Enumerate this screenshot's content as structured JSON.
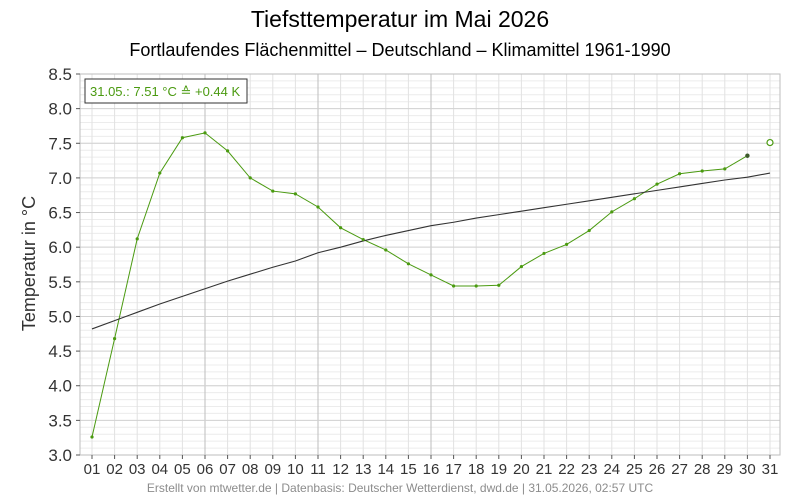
{
  "chart_data": {
    "type": "line",
    "title": "Tiefsttemperatur im Mai 2026",
    "subtitle": "Fortlaufendes Flächenmittel – Deutschland – Klimamittel 1961-1990",
    "xlabel": "",
    "ylabel": "Temperatur in °C",
    "x": [
      "01",
      "02",
      "03",
      "04",
      "05",
      "06",
      "07",
      "08",
      "09",
      "10",
      "11",
      "12",
      "13",
      "14",
      "15",
      "16",
      "17",
      "18",
      "19",
      "20",
      "21",
      "22",
      "23",
      "24",
      "25",
      "26",
      "27",
      "28",
      "29",
      "30",
      "31"
    ],
    "ylim": [
      3.0,
      8.5
    ],
    "yticks": [
      "3.0",
      "3.5",
      "4.0",
      "4.5",
      "5.0",
      "5.5",
      "6.0",
      "6.5",
      "7.0",
      "7.5",
      "8.0",
      "8.5"
    ],
    "grid": true,
    "series": [
      {
        "name": "",
        "color": "#4a9a10",
        "values": [
          3.26,
          4.68,
          6.12,
          7.07,
          7.58,
          7.65,
          7.39,
          7.0,
          6.81,
          6.77,
          6.58,
          6.28,
          6.11,
          5.96,
          5.76,
          5.6,
          5.44,
          5.44,
          5.45,
          5.72,
          5.91,
          6.04,
          6.24,
          6.51,
          6.7,
          6.91,
          7.06,
          7.1,
          7.13,
          7.32,
          null
        ]
      },
      {
        "name": "",
        "color": "#333333",
        "values": [
          4.82,
          4.94,
          5.06,
          5.18,
          5.29,
          5.4,
          5.51,
          5.61,
          5.71,
          5.8,
          5.92,
          6.0,
          6.09,
          6.17,
          6.24,
          6.31,
          6.36,
          6.42,
          6.47,
          6.52,
          6.57,
          6.62,
          6.67,
          6.72,
          6.77,
          6.82,
          6.87,
          6.92,
          6.97,
          7.01,
          7.07
        ]
      }
    ],
    "forecast_point": {
      "x": "31",
      "value": 7.51
    },
    "annotation": "31.05.: 7.51 °C ≙ +0.44 K"
  },
  "footer": "Erstellt von mtwetter.de | Datenbasis: Deutscher Wetterdienst, dwd.de | 31.05.2026, 02:57 UTC"
}
